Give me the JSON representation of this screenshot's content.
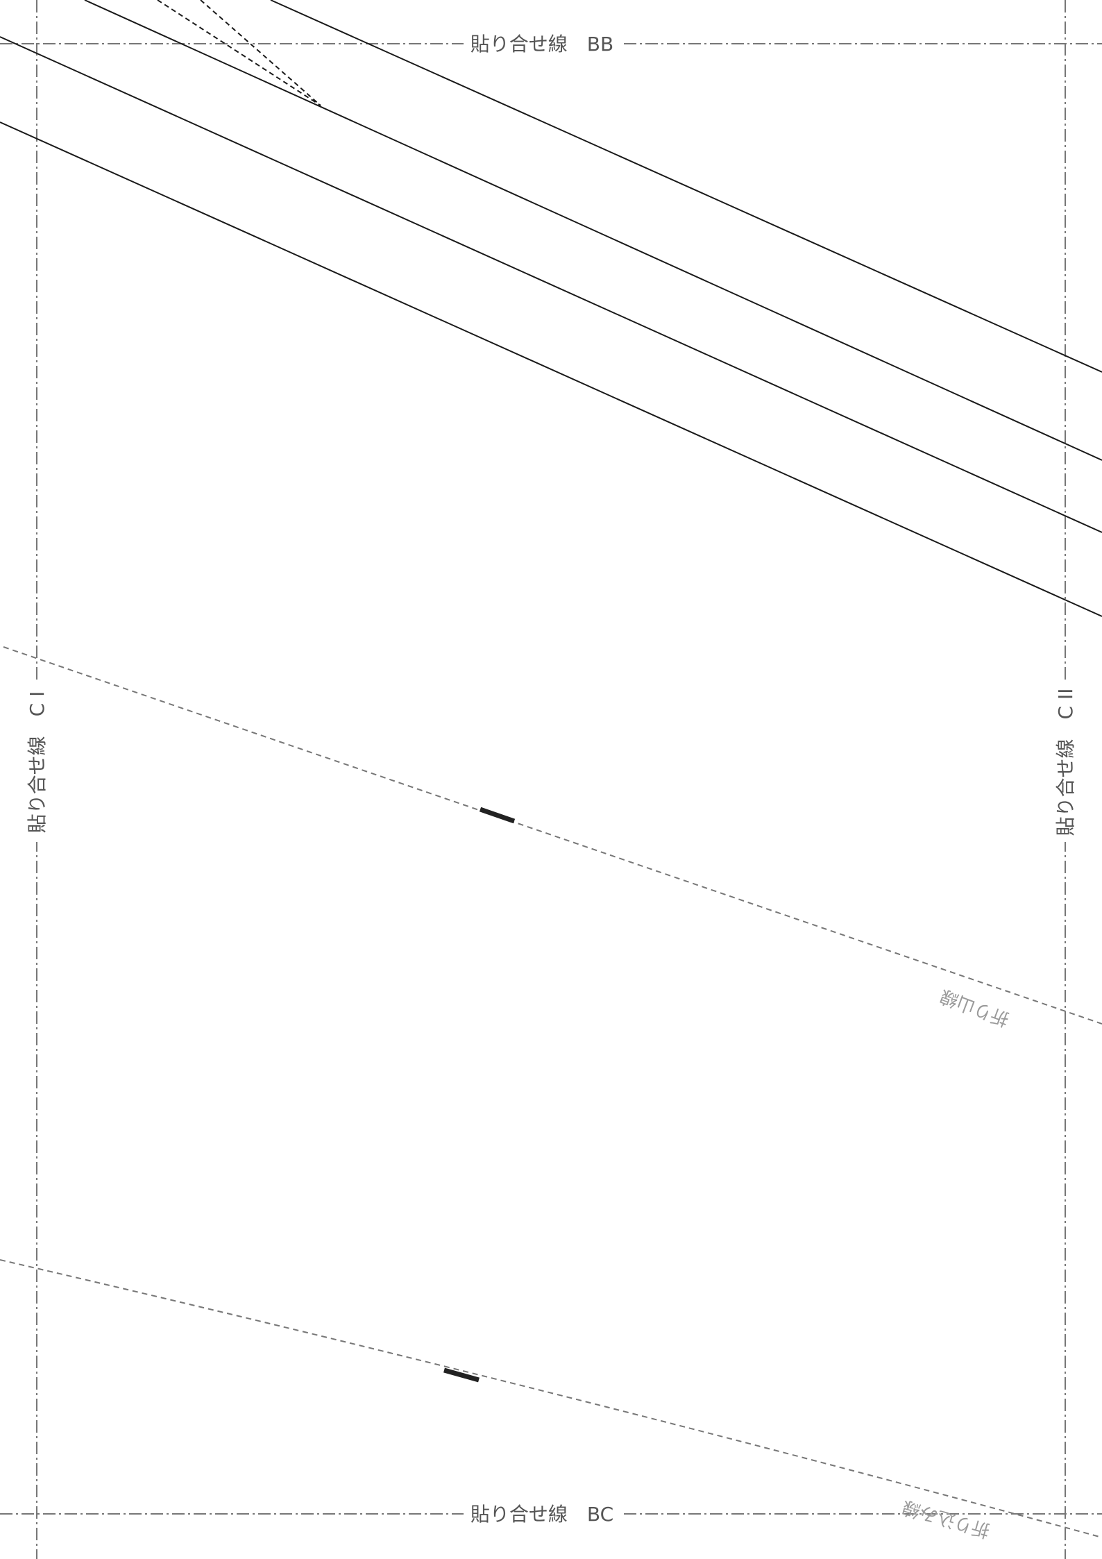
{
  "sheet": {
    "labels": {
      "top": "貼り合せ線　BB",
      "bottom": "貼り合せ線　BC",
      "left": "貼り合せ線　C I",
      "right": "貼り合せ線　C II",
      "fold_line_1": "折り山線",
      "fold_line_2": "折り込み線"
    },
    "colors": {
      "pattern_line": "#1a1a1a",
      "guide_line": "#777777",
      "label_text": "#555555",
      "secondary_text": "#9a9a9a",
      "background": "#ffffff"
    }
  }
}
